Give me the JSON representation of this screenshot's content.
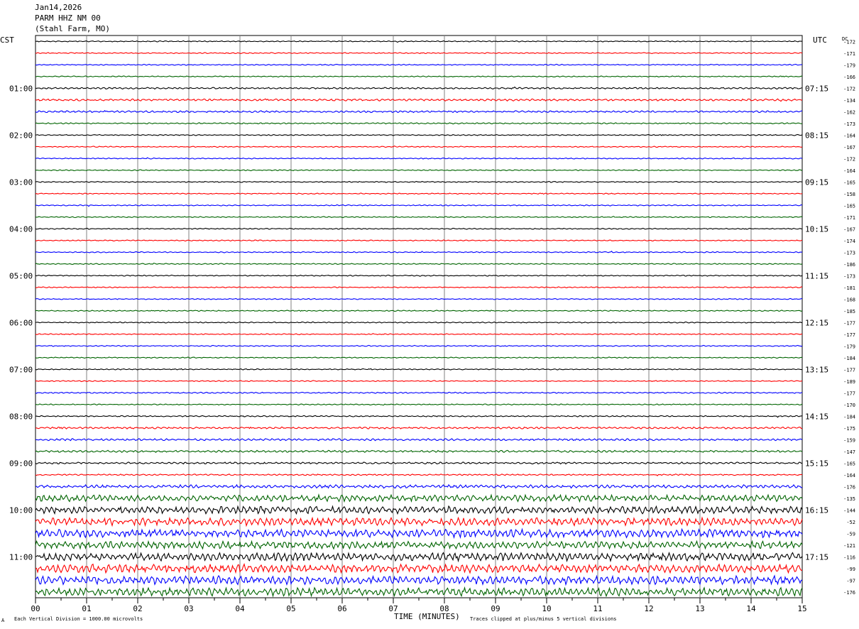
{
  "header": {
    "date": "Jan14,2026",
    "station": "PARM HHZ NM 00",
    "location": "(Stahl Farm, MO)"
  },
  "left_axis_label": "CST",
  "right_axis_label": "UTC",
  "dc_label": "DC",
  "footer": {
    "xlabel": "TIME (MINUTES)",
    "scale_note": "Each Vertical Division = 1000.00 microvolts",
    "clip_note": "Traces clipped at plus/minus 5 vertical divisions",
    "corner_mark": "A"
  },
  "colors": {
    "cycle": [
      "#000000",
      "#ff0000",
      "#0000ff",
      "#006400"
    ],
    "grid": "#808080",
    "frame": "#000000"
  },
  "chart_data": {
    "type": "line",
    "title": "",
    "xlabel": "TIME (MINUTES)",
    "xlim": [
      0,
      15
    ],
    "x_ticks": [
      "00",
      "01",
      "02",
      "03",
      "04",
      "05",
      "06",
      "07",
      "08",
      "09",
      "10",
      "11",
      "12",
      "13",
      "14",
      "15"
    ],
    "left_time_labels": [
      "01:00",
      "02:00",
      "03:00",
      "04:00",
      "05:00",
      "06:00",
      "07:00",
      "08:00",
      "09:00",
      "10:00",
      "11:00"
    ],
    "right_time_labels": [
      "07:15",
      "08:15",
      "09:15",
      "10:15",
      "11:15",
      "12:15",
      "13:15",
      "14:15",
      "15:15",
      "16:15",
      "17:15"
    ],
    "row_count": 48,
    "rows_per_hour": 4,
    "dc_offsets": [
      -172,
      -171,
      -179,
      -166,
      -172,
      -134,
      -162,
      -173,
      -164,
      -167,
      -172,
      -164,
      -165,
      -158,
      -165,
      -171,
      -167,
      -174,
      -173,
      -186,
      -173,
      -181,
      -168,
      -185,
      -177,
      -177,
      -179,
      -184,
      -177,
      -189,
      -177,
      -170,
      -184,
      -175,
      -159,
      -147,
      -165,
      -164,
      -176,
      -135,
      -144,
      -52,
      -59,
      -121,
      -116,
      -99,
      -97,
      -176
    ],
    "amplitude_levels": [
      0.5,
      0.5,
      0.5,
      0.5,
      0.8,
      1.0,
      0.9,
      0.6,
      0.5,
      0.5,
      0.5,
      0.5,
      0.5,
      0.5,
      0.5,
      0.5,
      0.5,
      0.5,
      0.5,
      0.5,
      0.5,
      0.5,
      0.5,
      0.5,
      0.5,
      0.5,
      0.5,
      0.5,
      0.5,
      0.5,
      0.6,
      0.5,
      0.6,
      0.9,
      1.0,
      1.0,
      0.9,
      0.7,
      1.6,
      3.2,
      3.6,
      3.8,
      4.0,
      3.6,
      4.0,
      4.2,
      4.2,
      4.0
    ]
  }
}
